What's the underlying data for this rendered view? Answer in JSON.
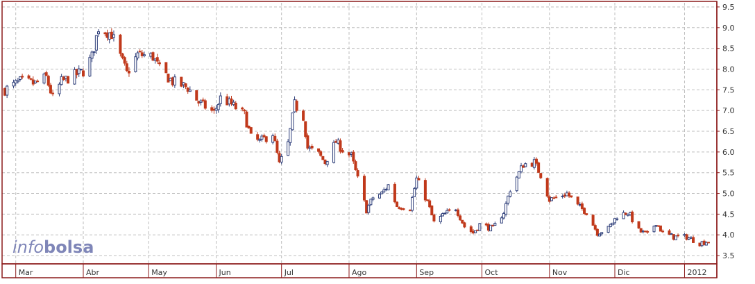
{
  "chart_data": {
    "type": "candlestick",
    "title": "",
    "xlabel": "",
    "ylabel": "",
    "ylim": [
      3.3,
      9.6
    ],
    "y_ticks": [
      3.5,
      4.0,
      4.5,
      5.0,
      5.5,
      6.0,
      6.5,
      7.0,
      7.5,
      8.0,
      8.5,
      9.0,
      9.5
    ],
    "y_axis_position": "right",
    "grid": true,
    "x_range": [
      "2011-02-24",
      "2012-01-13"
    ],
    "months": [
      {
        "label": "Mar",
        "date": "2011-03-01"
      },
      {
        "label": "Abr",
        "date": "2011-04-01"
      },
      {
        "label": "May",
        "date": "2011-05-01"
      },
      {
        "label": "Jun",
        "date": "2011-06-01"
      },
      {
        "label": "Jul",
        "date": "2011-07-01"
      },
      {
        "label": "Ago",
        "date": "2011-08-01"
      },
      {
        "label": "Sep",
        "date": "2011-09-01"
      },
      {
        "label": "Oct",
        "date": "2011-10-01"
      },
      {
        "label": "Nov",
        "date": "2011-11-01"
      },
      {
        "label": "Dic",
        "date": "2011-12-01"
      },
      {
        "label": "2012",
        "date": "2012-01-02"
      }
    ],
    "price_path": [
      [
        "2011-02-24",
        7.5
      ],
      [
        "2011-03-03",
        7.7
      ],
      [
        "2011-03-10",
        7.65
      ],
      [
        "2011-03-15",
        7.8
      ],
      [
        "2011-03-18",
        7.3
      ],
      [
        "2011-03-22",
        7.7
      ],
      [
        "2011-03-28",
        7.85
      ],
      [
        "2011-04-01",
        7.95
      ],
      [
        "2011-04-05",
        8.3
      ],
      [
        "2011-04-08",
        9.0
      ],
      [
        "2011-04-14",
        8.85
      ],
      [
        "2011-04-18",
        8.3
      ],
      [
        "2011-04-21",
        7.9
      ],
      [
        "2011-04-26",
        8.35
      ],
      [
        "2011-05-03",
        8.3
      ],
      [
        "2011-05-06",
        8.0
      ],
      [
        "2011-05-12",
        7.7
      ],
      [
        "2011-05-19",
        7.55
      ],
      [
        "2011-05-24",
        7.2
      ],
      [
        "2011-05-31",
        6.95
      ],
      [
        "2011-06-03",
        7.3
      ],
      [
        "2011-06-08",
        7.15
      ],
      [
        "2011-06-14",
        6.9
      ],
      [
        "2011-06-17",
        6.35
      ],
      [
        "2011-06-21",
        6.25
      ],
      [
        "2011-06-27",
        6.45
      ],
      [
        "2011-06-30",
        5.7
      ],
      [
        "2011-07-04",
        6.2
      ],
      [
        "2011-07-07",
        7.15
      ],
      [
        "2011-07-11",
        6.85
      ],
      [
        "2011-07-13",
        6.1
      ],
      [
        "2011-07-18",
        5.95
      ],
      [
        "2011-07-21",
        5.75
      ],
      [
        "2011-07-26",
        6.25
      ],
      [
        "2011-07-29",
        6.05
      ],
      [
        "2011-08-02",
        5.9
      ],
      [
        "2011-08-05",
        5.35
      ],
      [
        "2011-08-09",
        4.6
      ],
      [
        "2011-08-12",
        4.9
      ],
      [
        "2011-08-16",
        5.0
      ],
      [
        "2011-08-19",
        5.2
      ],
      [
        "2011-08-23",
        4.7
      ],
      [
        "2011-08-29",
        4.65
      ],
      [
        "2011-09-01",
        5.35
      ],
      [
        "2011-09-06",
        4.8
      ],
      [
        "2011-09-09",
        4.3
      ],
      [
        "2011-09-14",
        4.5
      ],
      [
        "2011-09-19",
        4.65
      ],
      [
        "2011-09-23",
        4.2
      ],
      [
        "2011-09-27",
        4.05
      ],
      [
        "2011-09-30",
        4.25
      ],
      [
        "2011-10-06",
        4.15
      ],
      [
        "2011-10-11",
        4.55
      ],
      [
        "2011-10-14",
        5.1
      ],
      [
        "2011-10-20",
        5.7
      ],
      [
        "2011-10-25",
        5.75
      ],
      [
        "2011-10-28",
        5.45
      ],
      [
        "2011-11-01",
        4.85
      ],
      [
        "2011-11-04",
        4.9
      ],
      [
        "2011-11-09",
        5.0
      ],
      [
        "2011-11-14",
        4.7
      ],
      [
        "2011-11-18",
        4.55
      ],
      [
        "2011-11-23",
        4.05
      ],
      [
        "2011-11-28",
        4.15
      ],
      [
        "2011-12-02",
        4.45
      ],
      [
        "2011-12-07",
        4.55
      ],
      [
        "2011-12-12",
        4.1
      ],
      [
        "2011-12-16",
        4.0
      ],
      [
        "2011-12-20",
        4.3
      ],
      [
        "2011-12-23",
        4.05
      ],
      [
        "2011-12-28",
        3.95
      ],
      [
        "2012-01-03",
        3.95
      ],
      [
        "2012-01-09",
        3.8
      ],
      [
        "2012-01-13",
        3.85
      ]
    ],
    "up_color": "#2f3f7a",
    "down_color": "#c0391b"
  },
  "watermark": {
    "part1": "info",
    "part2": "bolsa",
    "color": "#7f86b8"
  },
  "colors": {
    "frame": "#8b1a1a",
    "grid": "#bdbdbd",
    "background": "#ffffff",
    "axis_text": "#333333"
  }
}
